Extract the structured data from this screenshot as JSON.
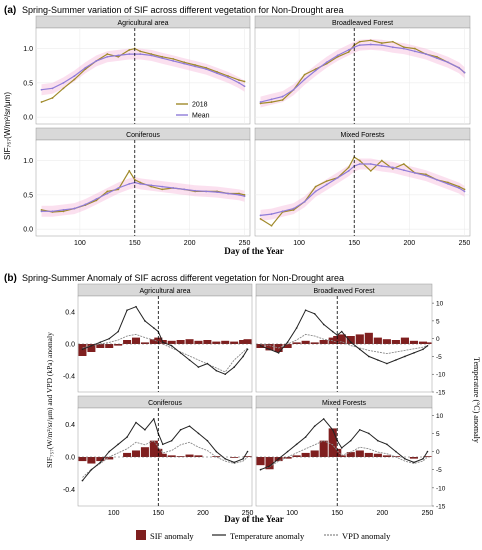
{
  "colors": {
    "sif_2018": "#a08a2a",
    "sif_mean": "#8f7bd8",
    "band_pink": "#f3a7d2",
    "band_lavender": "#c7c0f0",
    "panel_bg": "#ffffff",
    "grid": "#ececec",
    "strip_bg": "#d9d9d9",
    "anomaly_bar": "#7f1f1f",
    "temperature_line": "#222222",
    "vpd_line": "#8a8a8a",
    "dashed_line": "#000000"
  },
  "chart_data": [
    {
      "type": "line",
      "panel_label": "(a)",
      "title": "Spring-Summer variation of SIF across different vegetation for Non-Drought area",
      "xlabel": "Day of the Year",
      "ylabel": "SIF₇₅₇(W/m²/sr/μm)",
      "xlim": [
        60,
        255
      ],
      "ylim": [
        -0.1,
        1.3
      ],
      "x_ticks": [
        100,
        150,
        200,
        250
      ],
      "y_ticks": [
        0.0,
        0.5,
        1.0
      ],
      "y_tick_labels": [
        "0.0",
        "0.5",
        "1.0"
      ],
      "vline_x": 150,
      "grid": true,
      "legend": {
        "placement": "inside-top-left-panel-bottom-right",
        "entries": [
          "2018",
          "Mean"
        ]
      },
      "facets": [
        {
          "name": "Agricultural area",
          "series": [
            {
              "name": "2018",
              "x": [
                65,
                75,
                85,
                95,
                105,
                115,
                125,
                135,
                145,
                150,
                155,
                165,
                175,
                185,
                195,
                205,
                215,
                225,
                235,
                245,
                250
              ],
              "values": [
                0.22,
                0.28,
                0.42,
                0.55,
                0.7,
                0.82,
                0.92,
                0.88,
                0.98,
                1.0,
                0.96,
                0.92,
                0.88,
                0.85,
                0.8,
                0.76,
                0.72,
                0.66,
                0.6,
                0.54,
                0.52
              ]
            },
            {
              "name": "Mean",
              "x": [
                65,
                75,
                85,
                95,
                105,
                115,
                125,
                135,
                145,
                150,
                155,
                165,
                175,
                185,
                195,
                205,
                215,
                225,
                235,
                245,
                250
              ],
              "values": [
                0.4,
                0.42,
                0.5,
                0.6,
                0.72,
                0.82,
                0.88,
                0.9,
                0.92,
                0.92,
                0.92,
                0.9,
                0.86,
                0.82,
                0.78,
                0.74,
                0.7,
                0.64,
                0.58,
                0.5,
                0.45
              ]
            }
          ]
        },
        {
          "name": "Broadleaved Forest",
          "series": [
            {
              "name": "2018",
              "x": [
                65,
                75,
                85,
                95,
                105,
                115,
                125,
                135,
                145,
                150,
                155,
                165,
                175,
                185,
                195,
                205,
                215,
                225,
                235,
                245,
                250
              ],
              "values": [
                0.2,
                0.22,
                0.25,
                0.4,
                0.62,
                0.7,
                0.78,
                0.88,
                0.95,
                1.05,
                1.1,
                1.12,
                1.08,
                1.1,
                1.02,
                1.0,
                0.92,
                0.88,
                0.8,
                0.72,
                0.65
              ]
            },
            {
              "name": "Mean",
              "x": [
                65,
                75,
                85,
                95,
                105,
                115,
                125,
                135,
                145,
                150,
                155,
                165,
                175,
                185,
                195,
                205,
                215,
                225,
                235,
                245,
                250
              ],
              "values": [
                0.22,
                0.26,
                0.3,
                0.4,
                0.55,
                0.68,
                0.8,
                0.9,
                0.98,
                1.02,
                1.05,
                1.06,
                1.05,
                1.02,
                1.0,
                0.96,
                0.92,
                0.86,
                0.8,
                0.72,
                0.65
              ]
            }
          ]
        },
        {
          "name": "Coniferous",
          "series": [
            {
              "name": "2018",
              "x": [
                65,
                75,
                85,
                95,
                105,
                115,
                125,
                135,
                145,
                150,
                155,
                165,
                175,
                185,
                195,
                205,
                215,
                225,
                235,
                245,
                250
              ],
              "values": [
                0.28,
                0.25,
                0.26,
                0.3,
                0.35,
                0.42,
                0.55,
                0.58,
                0.85,
                0.72,
                0.68,
                0.62,
                0.58,
                0.6,
                0.58,
                0.55,
                0.55,
                0.55,
                0.52,
                0.52,
                0.5
              ]
            },
            {
              "name": "Mean",
              "x": [
                65,
                75,
                85,
                95,
                105,
                115,
                125,
                135,
                145,
                150,
                155,
                165,
                175,
                185,
                195,
                205,
                215,
                225,
                235,
                245,
                250
              ],
              "values": [
                0.26,
                0.26,
                0.28,
                0.3,
                0.36,
                0.44,
                0.52,
                0.6,
                0.66,
                0.68,
                0.66,
                0.64,
                0.62,
                0.6,
                0.58,
                0.56,
                0.55,
                0.54,
                0.52,
                0.5,
                0.48
              ]
            }
          ]
        },
        {
          "name": "Mixed Forests",
          "series": [
            {
              "name": "2018",
              "x": [
                65,
                75,
                85,
                95,
                105,
                115,
                125,
                135,
                145,
                150,
                155,
                165,
                175,
                185,
                195,
                205,
                215,
                225,
                235,
                245,
                250
              ],
              "values": [
                0.15,
                0.05,
                0.25,
                0.28,
                0.4,
                0.62,
                0.7,
                0.75,
                0.9,
                1.05,
                1.0,
                0.85,
                1.0,
                0.88,
                0.95,
                0.82,
                0.8,
                0.72,
                0.68,
                0.62,
                0.58
              ]
            },
            {
              "name": "Mean",
              "x": [
                65,
                75,
                85,
                95,
                105,
                115,
                125,
                135,
                145,
                150,
                155,
                165,
                175,
                185,
                195,
                205,
                215,
                225,
                235,
                245,
                250
              ],
              "values": [
                0.2,
                0.22,
                0.26,
                0.3,
                0.4,
                0.55,
                0.65,
                0.75,
                0.85,
                0.92,
                0.95,
                0.95,
                0.92,
                0.9,
                0.86,
                0.82,
                0.78,
                0.72,
                0.66,
                0.6,
                0.55
              ]
            }
          ]
        }
      ]
    },
    {
      "type": "bar",
      "panel_label": "(b)",
      "title": "Spring-Summer Anomaly of SIF across different vegetation for Non-Drought area",
      "xlabel": "Day of the Year",
      "ylabel_left": "SIF₇₅₇(W/m²/sr/μm) and VPD (kPa) anomaly",
      "ylabel_right": "Temperature (°C) anomaly",
      "xlim": [
        60,
        255
      ],
      "ylim_left": [
        -0.6,
        0.6
      ],
      "ylim_right": [
        -15,
        12
      ],
      "x_ticks": [
        50,
        100,
        150,
        200,
        250
      ],
      "y_ticks_left": [
        -0.4,
        0.0,
        0.4
      ],
      "y_tick_labels_left": [
        "-0.4",
        "0.0",
        "0.4"
      ],
      "y_ticks_right": [
        -15,
        -10,
        -5,
        0,
        5,
        10
      ],
      "vline_x": 150,
      "legend": {
        "placement": "bottom",
        "entries": [
          "SIF anomaly",
          "Temperature anomaly",
          "VPD anomaly"
        ]
      },
      "facets": [
        {
          "name": "Agricultural area",
          "x": [
            65,
            75,
            85,
            95,
            105,
            115,
            125,
            135,
            145,
            150,
            155,
            165,
            175,
            185,
            195,
            205,
            215,
            225,
            235,
            245,
            250
          ],
          "sif_anomaly": [
            -0.15,
            -0.1,
            -0.05,
            -0.05,
            -0.02,
            0.05,
            0.08,
            0.02,
            0.06,
            0.08,
            0.05,
            0.04,
            0.05,
            0.06,
            0.04,
            0.05,
            0.03,
            0.04,
            0.03,
            0.05,
            0.06
          ],
          "temperature_anomaly": [
            -3,
            -2,
            -1,
            0,
            2,
            8,
            9,
            5,
            3,
            2,
            -1,
            -2,
            -4,
            -6,
            -8,
            -7,
            -9,
            -10,
            -8,
            -5,
            -3
          ],
          "vpd_anomaly": [
            -0.05,
            -0.02,
            0.0,
            0.02,
            0.05,
            0.1,
            0.12,
            0.08,
            0.05,
            0.03,
            0.0,
            -0.05,
            -0.1,
            -0.15,
            -0.2,
            -0.25,
            -0.3,
            -0.35,
            -0.2,
            -0.1,
            -0.05
          ]
        },
        {
          "name": "Broadleaved Forest",
          "x": [
            65,
            75,
            85,
            95,
            105,
            115,
            125,
            135,
            145,
            150,
            155,
            165,
            175,
            185,
            195,
            205,
            215,
            225,
            235,
            245,
            250
          ],
          "sif_anomaly": [
            -0.05,
            -0.08,
            -0.1,
            -0.05,
            0.02,
            0.04,
            0.02,
            0.05,
            0.08,
            0.1,
            0.12,
            0.1,
            0.12,
            0.14,
            0.08,
            0.06,
            0.05,
            0.08,
            0.04,
            0.03,
            0.02
          ],
          "temperature_anomaly": [
            -2,
            -3,
            -4,
            -1,
            3,
            8,
            7,
            4,
            2,
            1,
            2,
            -1,
            -3,
            -5,
            -6,
            -7,
            -6,
            -5,
            -4,
            -3,
            -2
          ],
          "vpd_anomaly": [
            0.0,
            -0.02,
            -0.05,
            0.0,
            0.05,
            0.12,
            0.1,
            0.06,
            0.04,
            0.02,
            0.03,
            -0.02,
            -0.05,
            -0.08,
            -0.1,
            -0.12,
            -0.1,
            -0.08,
            -0.06,
            -0.04,
            -0.02
          ]
        },
        {
          "name": "Coniferous",
          "x": [
            65,
            75,
            85,
            95,
            105,
            115,
            125,
            135,
            145,
            150,
            155,
            165,
            175,
            185,
            195,
            205,
            215,
            225,
            235,
            245,
            250
          ],
          "sif_anomaly": [
            -0.05,
            -0.08,
            -0.05,
            -0.03,
            0.0,
            0.05,
            0.08,
            0.12,
            0.2,
            0.1,
            0.04,
            0.02,
            0.01,
            0.03,
            0.02,
            0.0,
            0.01,
            0.0,
            -0.01,
            0.0,
            0.01
          ],
          "temperature_anomaly": [
            -8,
            -5,
            -3,
            0,
            2,
            4,
            8,
            6,
            9,
            5,
            2,
            3,
            6,
            7,
            5,
            3,
            0,
            -2,
            -3,
            -2,
            0
          ],
          "vpd_anomaly": [
            -0.25,
            -0.15,
            -0.08,
            0.0,
            0.05,
            0.1,
            0.18,
            0.15,
            0.2,
            0.12,
            0.05,
            0.08,
            0.15,
            0.18,
            0.12,
            0.08,
            0.0,
            -0.05,
            -0.08,
            -0.05,
            0.0
          ]
        },
        {
          "name": "Mixed Forests",
          "x": [
            65,
            75,
            85,
            95,
            105,
            115,
            125,
            135,
            145,
            150,
            155,
            165,
            175,
            185,
            195,
            205,
            215,
            225,
            235,
            245,
            250
          ],
          "sif_anomaly": [
            -0.1,
            -0.15,
            -0.05,
            -0.02,
            0.02,
            0.05,
            0.08,
            0.2,
            0.35,
            0.1,
            0.02,
            0.06,
            0.08,
            0.05,
            0.04,
            0.02,
            0.01,
            0.0,
            -0.02,
            0.0,
            0.01
          ],
          "temperature_anomaly": [
            -5,
            -4,
            -2,
            0,
            2,
            4,
            7,
            9,
            6,
            3,
            1,
            3,
            6,
            5,
            3,
            2,
            0,
            -2,
            -3,
            -2,
            0
          ],
          "vpd_anomaly": [
            -0.15,
            -0.12,
            -0.05,
            0.0,
            0.05,
            0.1,
            0.15,
            0.2,
            0.15,
            0.08,
            0.02,
            0.06,
            0.12,
            0.1,
            0.06,
            0.04,
            0.0,
            -0.05,
            -0.08,
            -0.05,
            0.0
          ]
        }
      ]
    }
  ]
}
